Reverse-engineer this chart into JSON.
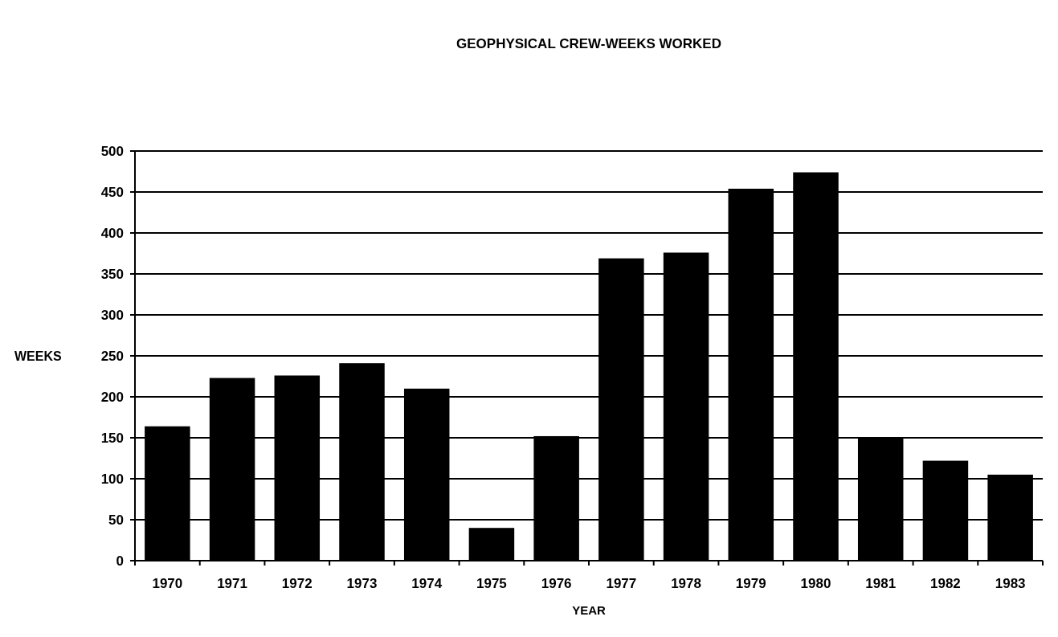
{
  "chart_data": {
    "type": "bar",
    "title": "GEOPHYSICAL CREW-WEEKS WORKED",
    "xlabel": "YEAR",
    "ylabel": "WEEKS",
    "categories": [
      "1970",
      "1971",
      "1972",
      "1973",
      "1974",
      "1975",
      "1976",
      "1977",
      "1978",
      "1979",
      "1980",
      "1981",
      "1982",
      "1983"
    ],
    "values": [
      164,
      223,
      226,
      241,
      210,
      40,
      152,
      369,
      376,
      454,
      474,
      149,
      122,
      105
    ],
    "color": "#000000",
    "ylim": [
      0,
      500
    ],
    "yticks": [
      0,
      50,
      100,
      150,
      200,
      250,
      300,
      350,
      400,
      450,
      500
    ],
    "grid": "y"
  }
}
